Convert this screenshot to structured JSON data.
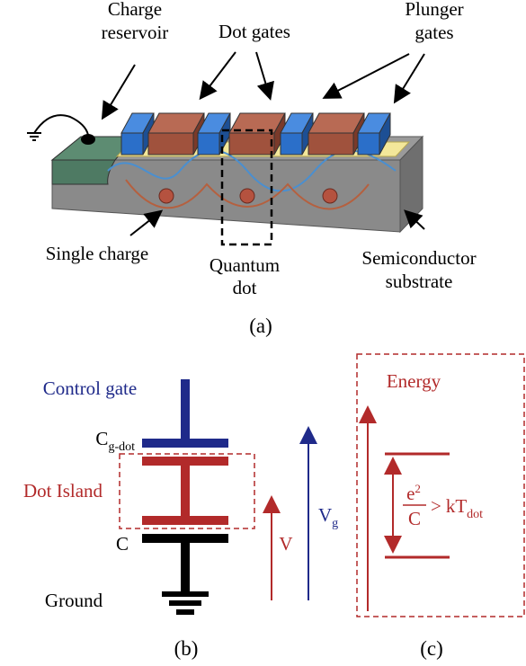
{
  "panel_a": {
    "labels": {
      "charge_reservoir": [
        "Charge",
        "reservoir"
      ],
      "dot_gates": "Dot gates",
      "plunger_gates": [
        "Plunger",
        "gates"
      ],
      "single_charge": "Single charge",
      "quantum_dot": [
        "Quantum",
        "dot"
      ],
      "semiconductor_substrate": [
        "Semiconductor",
        "substrate"
      ]
    },
    "caption": "(a)"
  },
  "panel_b": {
    "control_gate": "Control gate",
    "c_gdot": {
      "main": "C",
      "sub": "g-dot"
    },
    "dot_island": "Dot Island",
    "c": "C",
    "ground": "Ground",
    "v": "V",
    "vg": {
      "main": "V",
      "sub": "g"
    },
    "caption": "(b)"
  },
  "panel_c": {
    "energy": "Energy",
    "condition": {
      "numerator": "e",
      "power": "2",
      "denominator": "C",
      "relation": ">",
      "rhs": "kT",
      "rhs_sub": "dot"
    },
    "caption": "(c)"
  }
}
